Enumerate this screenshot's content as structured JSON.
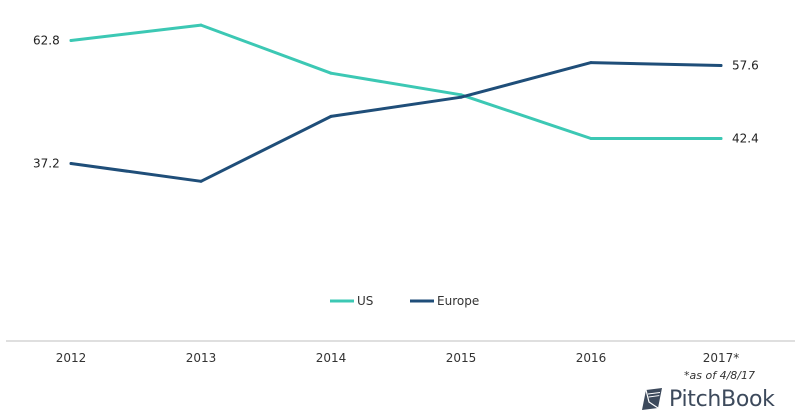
{
  "chart_data": {
    "type": "line",
    "categories": [
      "2012",
      "2013",
      "2014",
      "2015",
      "2016",
      "2017*"
    ],
    "series": [
      {
        "name": "US",
        "color": "#3cc8b4",
        "values": [
          62.8,
          66.0,
          56.0,
          51.5,
          42.4,
          42.4
        ]
      },
      {
        "name": "Europe",
        "color": "#1f4e79",
        "values": [
          37.2,
          33.5,
          47.0,
          51.0,
          58.2,
          57.6
        ]
      }
    ],
    "data_labels": [
      {
        "series": "US",
        "index": 0,
        "text": "62.8",
        "side": "left"
      },
      {
        "series": "Europe",
        "index": 0,
        "text": "37.2",
        "side": "left"
      },
      {
        "series": "Europe",
        "index": 5,
        "text": "57.6",
        "side": "right"
      },
      {
        "series": "US",
        "index": 5,
        "text": "42.4",
        "side": "right"
      }
    ],
    "ylim": [
      15,
      70
    ],
    "grid": false,
    "legend_position": "bottom-center"
  },
  "footnote": "*as of 4/8/17",
  "brand": {
    "name": "PitchBook",
    "icon": "pitchbook-logo-icon"
  }
}
